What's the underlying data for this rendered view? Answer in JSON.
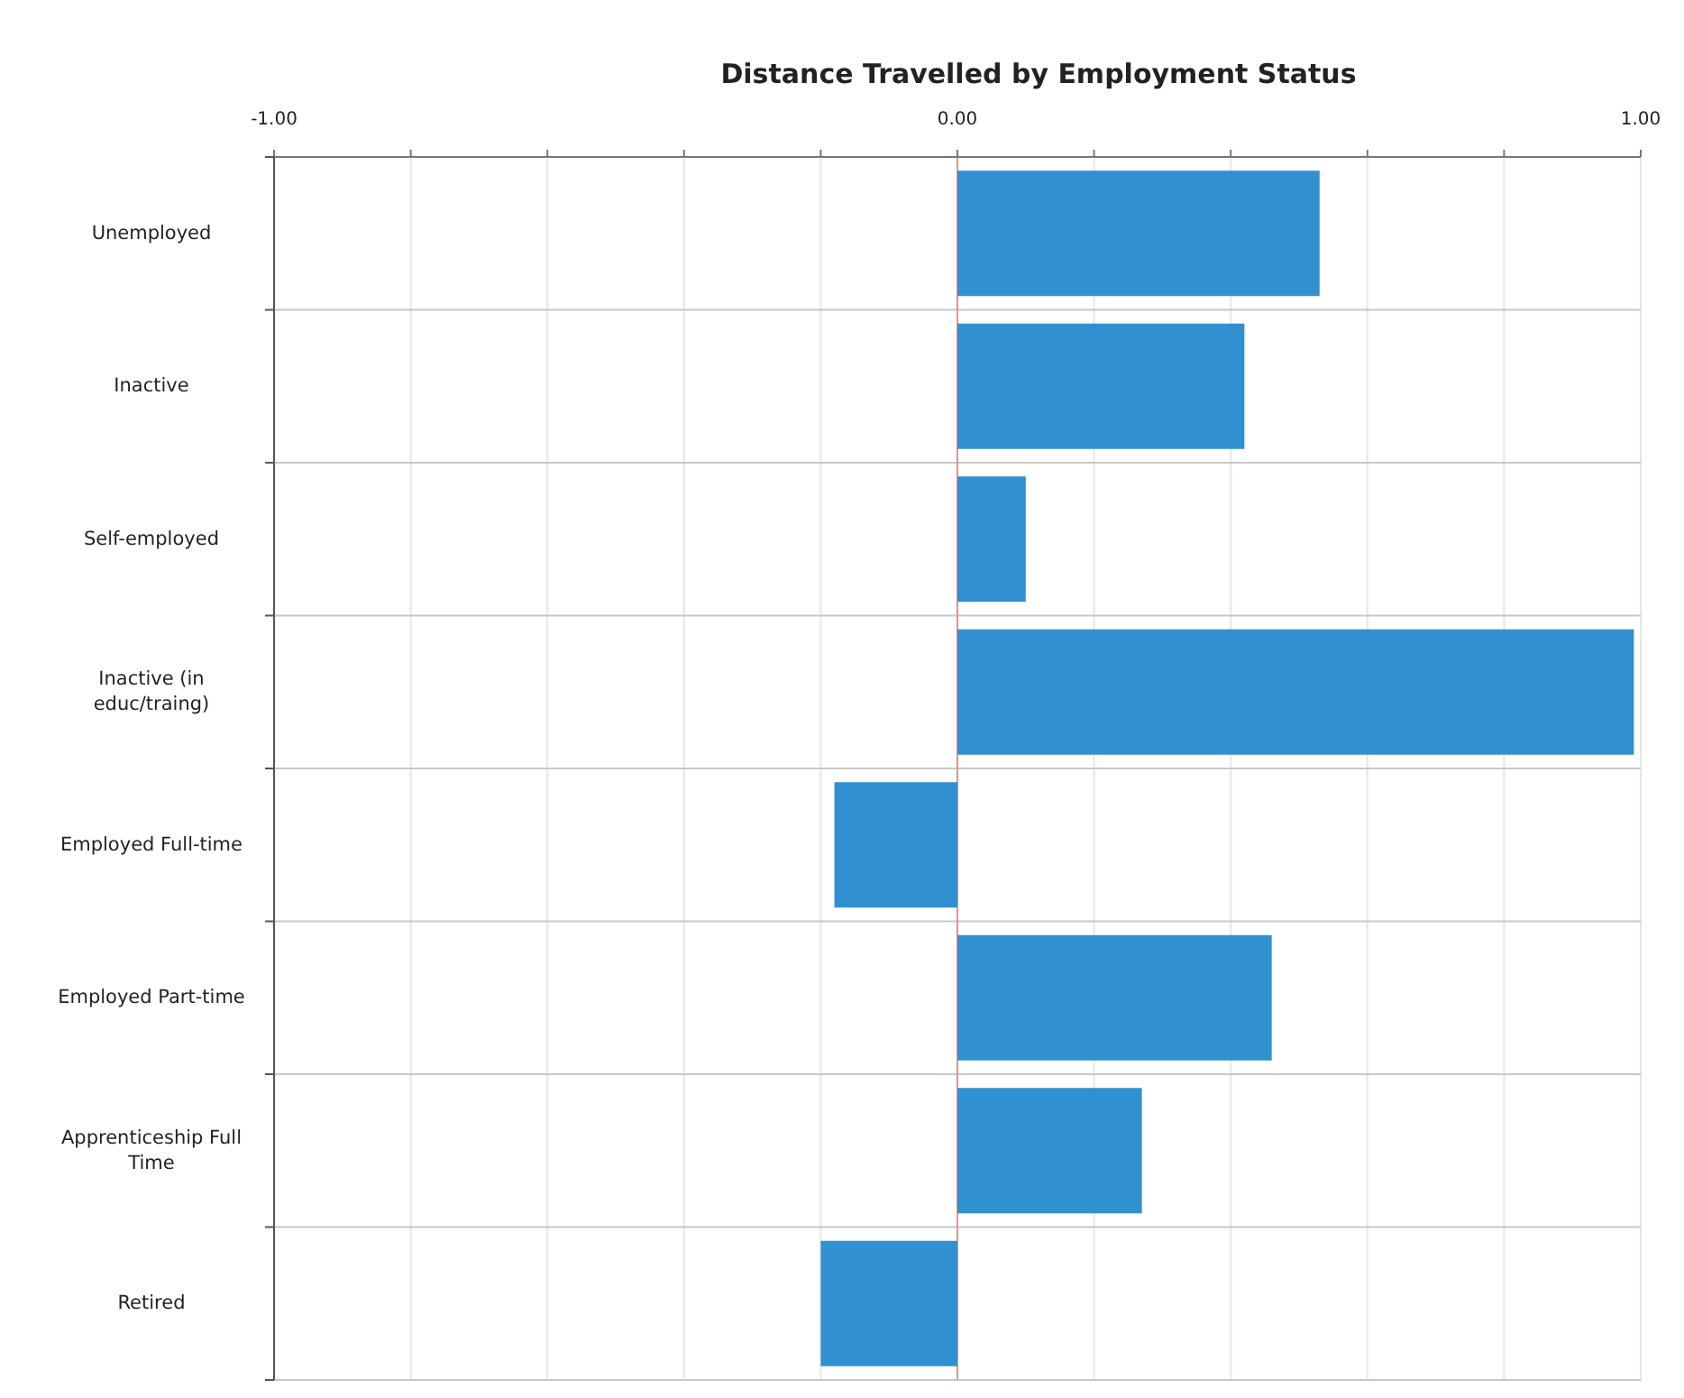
{
  "chart_data": {
    "type": "bar",
    "orientation": "horizontal",
    "title": "Distance Travelled by Employment Status",
    "categories": [
      "Unemployed",
      "Inactive",
      "Self-employed",
      "Inactive (in educ/traing)",
      "Employed Full-time",
      "Employed Part-time",
      "Apprenticeship Full Time",
      "Retired"
    ],
    "values": [
      0.53,
      0.42,
      0.1,
      0.99,
      -0.18,
      0.46,
      0.27,
      -0.2
    ],
    "color": "#3190d0",
    "xlim": [
      -1,
      1
    ],
    "xticks": [
      {
        "value": -1,
        "label": "-1.00"
      },
      {
        "value": -0.8,
        "label": null
      },
      {
        "value": -0.6,
        "label": null
      },
      {
        "value": -0.4,
        "label": null
      },
      {
        "value": -0.2,
        "label": null
      },
      {
        "value": 0,
        "label": "0.00"
      },
      {
        "value": 0.2,
        "label": null
      },
      {
        "value": 0.4,
        "label": null
      },
      {
        "value": 0.6,
        "label": null
      },
      {
        "value": 0.8,
        "label": null
      },
      {
        "value": 1,
        "label": "1.00"
      }
    ],
    "ref_lines": [
      {
        "axis": "x",
        "value": 0,
        "color": "#e89090"
      }
    ],
    "grid": true
  }
}
